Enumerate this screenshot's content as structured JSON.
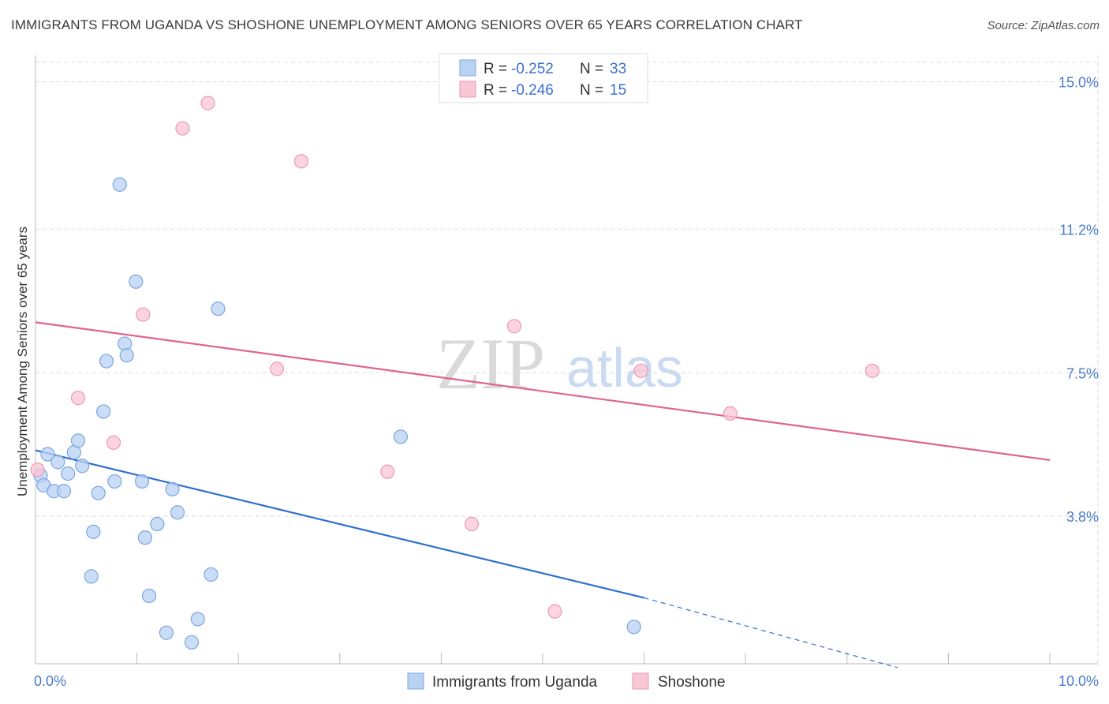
{
  "header": {
    "title": "IMMIGRANTS FROM UGANDA VS SHOSHONE UNEMPLOYMENT AMONG SENIORS OVER 65 YEARS CORRELATION CHART",
    "source": "Source: ZipAtlas.com"
  },
  "watermark": {
    "zip": "ZIP",
    "atlas": "atlas"
  },
  "colors": {
    "uganda_fill": "#b9d2f3",
    "uganda_stroke": "#7aa6e0",
    "uganda_line": "#2f6fd1",
    "shoshone_fill": "#f9c6d5",
    "shoshone_stroke": "#eb9ab3",
    "shoshone_line": "#e0648d",
    "grid": "#dddddd",
    "tick": "#4a7cc9"
  },
  "legend": {
    "rows": [
      {
        "r_label": "R =",
        "r_value": "-0.252",
        "n_label": "N =",
        "n_value": "33"
      },
      {
        "r_label": "R =",
        "r_value": "-0.246",
        "n_label": "N =",
        "n_value": "15"
      }
    ]
  },
  "chart_data": {
    "type": "scatter",
    "title": "IMMIGRANTS FROM UGANDA VS SHOSHONE UNEMPLOYMENT AMONG SENIORS OVER 65 YEARS CORRELATION CHART",
    "xlabel": "",
    "ylabel": "Unemployment Among Seniors over 65 years",
    "xlim": [
      0,
      10
    ],
    "ylim": [
      0,
      15.5
    ],
    "x_tick_labels": [
      "0.0%",
      "10.0%"
    ],
    "y_ticks": [
      3.8,
      7.5,
      11.2,
      15.0
    ],
    "y_tick_labels": [
      "3.8%",
      "7.5%",
      "11.2%",
      "15.0%"
    ],
    "grid": true,
    "legend_position": "top-center",
    "series": [
      {
        "name": "Immigrants from Uganda",
        "points": [
          [
            0.05,
            4.85
          ],
          [
            0.08,
            4.6
          ],
          [
            0.12,
            5.4
          ],
          [
            0.18,
            4.45
          ],
          [
            0.22,
            5.2
          ],
          [
            0.28,
            4.45
          ],
          [
            0.32,
            4.9
          ],
          [
            0.38,
            5.45
          ],
          [
            0.42,
            5.75
          ],
          [
            0.46,
            5.1
          ],
          [
            0.55,
            2.25
          ],
          [
            0.57,
            3.4
          ],
          [
            0.62,
            4.4
          ],
          [
            0.67,
            6.5
          ],
          [
            0.7,
            7.8
          ],
          [
            0.78,
            4.7
          ],
          [
            0.83,
            12.35
          ],
          [
            0.88,
            8.25
          ],
          [
            0.9,
            7.95
          ],
          [
            0.99,
            9.85
          ],
          [
            1.05,
            4.7
          ],
          [
            1.08,
            3.25
          ],
          [
            1.12,
            1.75
          ],
          [
            1.2,
            3.6
          ],
          [
            1.29,
            0.8
          ],
          [
            1.35,
            4.5
          ],
          [
            1.4,
            3.9
          ],
          [
            1.54,
            0.55
          ],
          [
            1.6,
            1.15
          ],
          [
            1.73,
            2.3
          ],
          [
            1.8,
            9.15
          ],
          [
            3.6,
            5.85
          ],
          [
            5.9,
            0.95
          ]
        ],
        "trend": {
          "x0": 0.0,
          "y0": 5.5,
          "x1_solid": 6.0,
          "y1_solid": 1.7,
          "x1_dash": 8.5,
          "y1_dash": -0.1
        }
      },
      {
        "name": "Shoshone",
        "points": [
          [
            0.02,
            5.0
          ],
          [
            0.42,
            6.85
          ],
          [
            0.77,
            5.7
          ],
          [
            1.06,
            9.0
          ],
          [
            1.45,
            13.8
          ],
          [
            1.7,
            14.45
          ],
          [
            2.38,
            7.6
          ],
          [
            2.62,
            12.95
          ],
          [
            3.47,
            4.95
          ],
          [
            4.3,
            3.6
          ],
          [
            4.72,
            8.7
          ],
          [
            5.12,
            1.35
          ],
          [
            5.97,
            7.55
          ],
          [
            6.85,
            6.45
          ],
          [
            8.25,
            7.55
          ]
        ],
        "trend": {
          "x0": 0.0,
          "y0": 8.8,
          "x1": 10.0,
          "y1": 5.25
        }
      }
    ]
  }
}
